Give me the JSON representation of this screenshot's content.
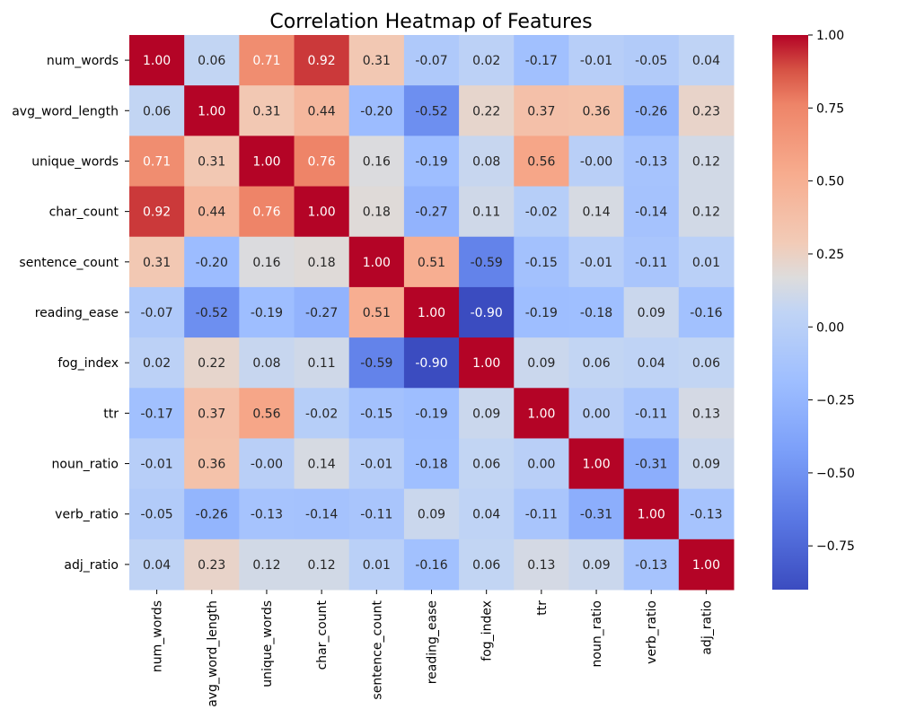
{
  "chart_data": {
    "type": "heatmap",
    "title": "Correlation Heatmap of Features",
    "xlabel": "",
    "ylabel": "",
    "labels": [
      "num_words",
      "avg_word_length",
      "unique_words",
      "char_count",
      "sentence_count",
      "reading_ease",
      "fog_index",
      "ttr",
      "noun_ratio",
      "verb_ratio",
      "adj_ratio"
    ],
    "value_labels": [
      [
        "1.00",
        "0.06",
        "0.71",
        "0.92",
        "0.31",
        "-0.07",
        "0.02",
        "-0.17",
        "-0.01",
        "-0.05",
        "0.04"
      ],
      [
        "0.06",
        "1.00",
        "0.31",
        "0.44",
        "-0.20",
        "-0.52",
        "0.22",
        "0.37",
        "0.36",
        "-0.26",
        "0.23"
      ],
      [
        "0.71",
        "0.31",
        "1.00",
        "0.76",
        "0.16",
        "-0.19",
        "0.08",
        "0.56",
        "-0.00",
        "-0.13",
        "0.12"
      ],
      [
        "0.92",
        "0.44",
        "0.76",
        "1.00",
        "0.18",
        "-0.27",
        "0.11",
        "-0.02",
        "0.14",
        "-0.14",
        "0.12"
      ],
      [
        "0.31",
        "-0.20",
        "0.16",
        "0.18",
        "1.00",
        "0.51",
        "-0.59",
        "-0.15",
        "-0.01",
        "-0.11",
        "0.01"
      ],
      [
        "-0.07",
        "-0.52",
        "-0.19",
        "-0.27",
        "0.51",
        "1.00",
        "-0.90",
        "-0.19",
        "-0.18",
        "0.09",
        "-0.16"
      ],
      [
        "0.02",
        "0.22",
        "0.08",
        "0.11",
        "-0.59",
        "-0.90",
        "1.00",
        "0.09",
        "0.06",
        "0.04",
        "0.06"
      ],
      [
        "-0.17",
        "0.37",
        "0.56",
        "-0.02",
        "-0.15",
        "-0.19",
        "0.09",
        "1.00",
        "0.00",
        "-0.11",
        "0.13"
      ],
      [
        "-0.01",
        "0.36",
        "-0.00",
        "0.14",
        "-0.01",
        "-0.18",
        "0.06",
        "0.00",
        "1.00",
        "-0.31",
        "0.09"
      ],
      [
        "-0.05",
        "-0.26",
        "-0.13",
        "-0.14",
        "-0.11",
        "0.09",
        "0.04",
        "-0.11",
        "-0.31",
        "1.00",
        "-0.13"
      ],
      [
        "0.04",
        "0.23",
        "0.12",
        "0.12",
        "0.01",
        "-0.16",
        "0.06",
        "0.13",
        "0.09",
        "-0.13",
        "1.00"
      ]
    ],
    "colormap": "coolwarm",
    "vmin": -0.9,
    "vmax": 1.0,
    "colorbar_ticks": [
      1.0,
      0.75,
      0.5,
      0.25,
      0.0,
      -0.25,
      -0.5,
      -0.75
    ],
    "colorbar_tick_labels": [
      "1.00",
      "0.75",
      "0.50",
      "0.25",
      "0.00",
      "−0.25",
      "−0.50",
      "−0.75"
    ],
    "colormap_stops": [
      {
        "v": 0.0,
        "color": "#3b4cc0"
      },
      {
        "v": 0.125,
        "color": "#5977e3"
      },
      {
        "v": 0.25,
        "color": "#7b9ff9"
      },
      {
        "v": 0.375,
        "color": "#9ebeff"
      },
      {
        "v": 0.5,
        "color": "#c0d4f5"
      },
      {
        "v": 0.5625,
        "color": "#dddcdc"
      },
      {
        "v": 0.625,
        "color": "#f2cbb7"
      },
      {
        "v": 0.75,
        "color": "#f7ac8e"
      },
      {
        "v": 0.875,
        "color": "#ee8468"
      },
      {
        "v": 0.9375,
        "color": "#d65244"
      },
      {
        "v": 1.0,
        "color": "#b40426"
      }
    ]
  }
}
